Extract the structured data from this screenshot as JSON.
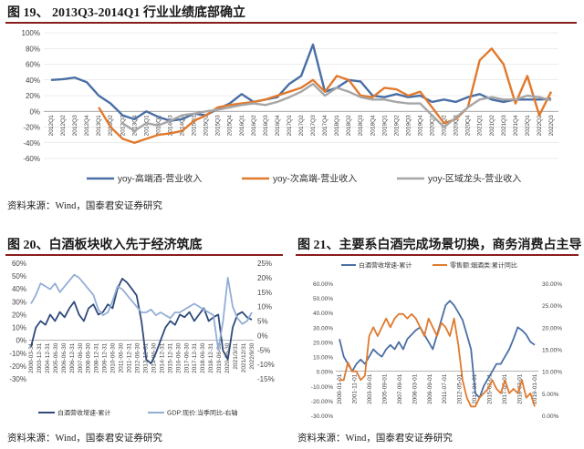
{
  "colors": {
    "blue": "#4a6fa5",
    "orange": "#e07a2e",
    "gray": "#a6a6a6",
    "darkblue": "#2f4a7a",
    "lightblue": "#93aed6",
    "title_rule": "#8a1c1c"
  },
  "fig19": {
    "title": "图 19、 2013Q3-2014Q1 行业业绩底部确立",
    "source": "资料来源：Wind，国泰君安证券研究"
  },
  "fig20": {
    "title": "图 20、白酒板块收入先于经济筑底",
    "source": "资料来源：Wind，国泰君安证券研究"
  },
  "fig21": {
    "title": "图 21、主要系白酒完成场景切换，商务消费占主导",
    "source": "资料来源：Wind，国泰君安证券研究"
  },
  "chart_data": [
    {
      "type": "line",
      "x": [
        "2012Q1",
        "2012Q2",
        "2012Q3",
        "2012Q4",
        "2013Q1",
        "2013Q2",
        "2013Q3",
        "2013Q4",
        "2014Q1",
        "2014Q2",
        "2014Q3",
        "2014Q4",
        "2015Q1",
        "2015Q2",
        "2015Q3",
        "2015Q4",
        "2016Q1",
        "2016Q2",
        "2016Q3",
        "2016Q4",
        "2017Q1",
        "2017Q2",
        "2017Q3",
        "2017Q4",
        "2018Q1",
        "2018Q2",
        "2018Q3",
        "2018Q4",
        "2019Q1",
        "2019Q2",
        "2019Q3",
        "2019Q4",
        "2020Q1",
        "2020Q2",
        "2020Q3",
        "2020Q4",
        "2021Q1",
        "2021Q2",
        "2021Q3",
        "2021Q4",
        "2022Q1",
        "2022Q2",
        "2022Q3"
      ],
      "yticks": [
        "100%",
        "80%",
        "60%",
        "40%",
        "20%",
        "0%",
        "-20%",
        "-40%",
        "-60%"
      ],
      "ylim": [
        -60,
        100
      ],
      "series": [
        {
          "name": "yoy-高端酒-营业收入",
          "color": "#4a6fa5",
          "values": [
            40,
            41,
            43,
            37,
            20,
            10,
            -5,
            -10,
            0,
            -7,
            -12,
            -10,
            -3,
            -5,
            3,
            10,
            22,
            12,
            15,
            18,
            35,
            45,
            85,
            25,
            30,
            40,
            38,
            20,
            18,
            22,
            18,
            20,
            12,
            15,
            12,
            18,
            22,
            15,
            12,
            15,
            15,
            15,
            16
          ]
        },
        {
          "name": "yoy-次高端-营业收入",
          "color": "#e07a2e",
          "values": [
            null,
            null,
            null,
            null,
            5,
            -20,
            -35,
            -40,
            -35,
            -30,
            -28,
            -25,
            -12,
            -5,
            5,
            8,
            10,
            12,
            15,
            20,
            25,
            30,
            40,
            25,
            45,
            40,
            20,
            18,
            30,
            28,
            20,
            25,
            5,
            -15,
            -10,
            5,
            65,
            80,
            60,
            10,
            45,
            -5,
            25
          ]
        },
        {
          "name": "yoy-区域龙头-营业收入",
          "color": "#a6a6a6",
          "values": [
            null,
            null,
            null,
            null,
            null,
            null,
            -15,
            -25,
            -15,
            -18,
            -12,
            -5,
            -3,
            0,
            2,
            5,
            8,
            10,
            8,
            12,
            18,
            25,
            35,
            20,
            30,
            25,
            18,
            15,
            15,
            12,
            10,
            10,
            -5,
            -20,
            -8,
            5,
            15,
            18,
            15,
            15,
            20,
            18,
            14
          ]
        }
      ]
    },
    {
      "type": "line",
      "x_ticks": [
        "2000-03-31",
        "2003-12-31",
        "2004-12-31",
        "2005-06-30",
        "2006-06-30",
        "2006-12-31",
        "2007-06-30",
        "2008-06-30",
        "2008-12-31",
        "2009-12-31",
        "2010-06-30",
        "2011-06-30",
        "2011-12-31",
        "2012-06-30",
        "2013-12-31",
        "2014-06-30",
        "2014-12-31",
        "2015-12-31",
        "2016-06-30",
        "2017-06-30",
        "2017-12-31",
        "2018-06-30",
        "2018-12-31",
        "2019-06-30",
        "2020-06-30",
        "2021/3/31",
        "2021/12/31",
        "2022/9/30"
      ],
      "yticks_left": [
        "60%",
        "50%",
        "40%",
        "30%",
        "20%",
        "10%",
        "0%",
        "-10%",
        "-20%",
        "-30%"
      ],
      "yticks_right": [
        "25%",
        "20%",
        "15%",
        "10%",
        "5%",
        "0%",
        "-5%",
        "-10%",
        "-15%"
      ],
      "ylim_left": [
        -30,
        60
      ],
      "ylim_right": [
        -15,
        25
      ],
      "series": [
        {
          "name": "白酒营收增速-累计",
          "axis": "left",
          "color": "#2f4a7a",
          "values": [
            -5,
            10,
            15,
            12,
            20,
            15,
            22,
            18,
            25,
            30,
            20,
            15,
            25,
            28,
            20,
            22,
            28,
            25,
            40,
            48,
            45,
            40,
            35,
            15,
            -15,
            -18,
            -10,
            0,
            10,
            15,
            12,
            20,
            18,
            22,
            15,
            20,
            25,
            15,
            18,
            20,
            -8,
            -15,
            10,
            20,
            22,
            18,
            16
          ]
        },
        {
          "name": "GDP:现价:当季同比-右轴",
          "axis": "right",
          "color": "#93aed6",
          "values": [
            11,
            14,
            18,
            17,
            16,
            18,
            15,
            17,
            19,
            21,
            20,
            18,
            16,
            14,
            9,
            7,
            8,
            12,
            17,
            16,
            14,
            12,
            10,
            8,
            8,
            9,
            7,
            8,
            7,
            6,
            8,
            8,
            9,
            10,
            11,
            10,
            9,
            8,
            7,
            -5,
            5,
            20,
            10,
            6,
            4,
            5,
            8
          ]
        }
      ]
    },
    {
      "type": "line",
      "x_ticks": [
        "2000-01-01",
        "2001-11-01",
        "2003-09-01",
        "2005-09-01",
        "2007-09-01",
        "2008-03-01",
        "2009-09-01",
        "2011-07-01",
        "2012-05-01",
        "2013-01-01",
        "2015-01-01",
        "2017-05-01",
        "2018-03-01",
        "2019-01-01"
      ],
      "yticks_left": [
        "60.00%",
        "50.00%",
        "40.00%",
        "30.00%",
        "20.00%",
        "10.00%",
        "0.00%",
        "-10.00%",
        "-20.00%",
        "-30.00%"
      ],
      "yticks_right": [
        "30.00%",
        "25.00%",
        "20.00%",
        "15.00%",
        "10.00%",
        "5.00%",
        "0.00%"
      ],
      "ylim_left": [
        -30,
        60
      ],
      "ylim_right": [
        0,
        30
      ],
      "series": [
        {
          "name": "白酒营收增速-累计",
          "axis": "left",
          "color": "#4a6fa5",
          "values": [
            22,
            10,
            5,
            0,
            5,
            8,
            5,
            10,
            15,
            12,
            10,
            15,
            18,
            15,
            20,
            15,
            22,
            25,
            28,
            30,
            25,
            20,
            15,
            25,
            35,
            45,
            48,
            45,
            40,
            35,
            25,
            15,
            -15,
            -18,
            -10,
            -5,
            0,
            5,
            5,
            10,
            15,
            22,
            30,
            28,
            25,
            20,
            18
          ]
        },
        {
          "name": "零售额:烟酒类:累计同比",
          "axis": "right",
          "color": "#e07a2e",
          "values": [
            8,
            8,
            12,
            10,
            10,
            8,
            9,
            18,
            20,
            18,
            20,
            22,
            20,
            22,
            23,
            23,
            22,
            23,
            22,
            20,
            18,
            22,
            20,
            18,
            21,
            20,
            18,
            22,
            16,
            8,
            4,
            2,
            2,
            4,
            5,
            6,
            8,
            6,
            5,
            8,
            5,
            6,
            5,
            8,
            4,
            5,
            2
          ]
        }
      ]
    }
  ]
}
